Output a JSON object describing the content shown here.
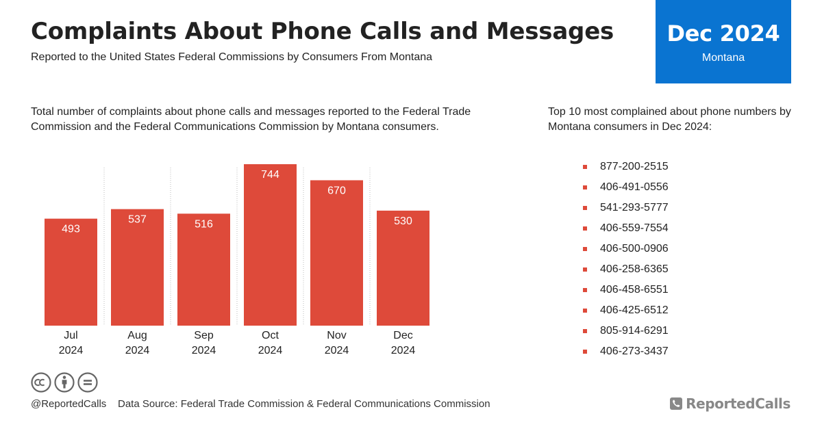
{
  "header": {
    "title": "Complaints About Phone Calls and Messages",
    "subtitle": "Reported to the United States Federal Commissions by Consumers From Montana"
  },
  "badge": {
    "period": "Dec 2024",
    "region": "Montana"
  },
  "chart_description": "Total number of complaints about phone calls and messages reported to the Federal Trade Commission and the Federal Communications Commission by Montana consumers.",
  "chart_data": {
    "type": "bar",
    "categories": [
      [
        "Jul",
        "2024"
      ],
      [
        "Aug",
        "2024"
      ],
      [
        "Sep",
        "2024"
      ],
      [
        "Oct",
        "2024"
      ],
      [
        "Nov",
        "2024"
      ],
      [
        "Dec",
        "2024"
      ]
    ],
    "values": [
      493,
      537,
      516,
      744,
      670,
      530
    ],
    "title": "",
    "xlabel": "",
    "ylabel": "",
    "ylim": [
      0,
      744
    ],
    "grid": "vertical dotted separators",
    "bar_color": "#de4a3a",
    "data_labels": "inside top of bars"
  },
  "top_numbers": {
    "description": "Top 10 most complained about phone numbers by Montana consumers in Dec 2024:",
    "numbers": [
      "877-200-2515",
      "406-491-0556",
      "541-293-5777",
      "406-559-7554",
      "406-500-0906",
      "406-258-6365",
      "406-458-6551",
      "406-425-6512",
      "805-914-6291",
      "406-273-3437"
    ],
    "bullet_color": "#de4a3a"
  },
  "footer": {
    "license_icons": [
      "cc-icon",
      "attribution-icon",
      "no-derivatives-icon"
    ],
    "handle": "@ReportedCalls",
    "source": "Data Source: Federal Trade Commission & Federal Communications Commission",
    "brand": "ReportedCalls",
    "brand_icon": "phone-icon"
  },
  "colors": {
    "accent": "#0a74d1",
    "bar": "#de4a3a",
    "text": "#222222",
    "brand": "#888888"
  }
}
